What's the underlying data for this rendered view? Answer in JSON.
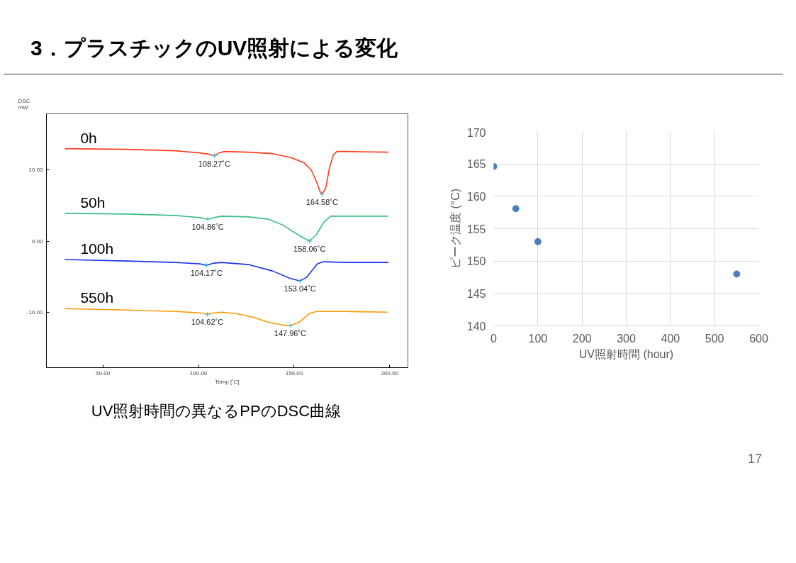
{
  "chart_data": [
    {
      "type": "line",
      "title": "3．プラスチックのUV照射による変化",
      "xlabel": "Temp [˚C]",
      "ylabel": "DSC\nmW",
      "xlim": [
        20.5,
        209.5
      ],
      "ylim": [
        -17.8,
        17.9
      ],
      "xticks": [
        {
          "value": 50,
          "label": "50.00"
        },
        {
          "value": 100,
          "label": "100.00"
        },
        {
          "value": 150,
          "label": "150.00"
        },
        {
          "value": 200,
          "label": "200.00"
        }
      ],
      "yticks": [
        {
          "value": -10,
          "label": "-10.00"
        },
        {
          "value": 0,
          "label": "0.00"
        },
        {
          "value": 10,
          "label": "10.00"
        }
      ],
      "grid": false,
      "legend": false,
      "marker": "none",
      "line_style": "solid",
      "series": [
        {
          "name": "0h",
          "color": "#ff3c1e",
          "x": [
            30.1,
            62.5,
            87.9,
            100.6,
            105.7,
            108.27,
            110.7,
            113.3,
            126,
            138.7,
            148.9,
            155.2,
            159.0,
            161.6,
            163.5,
            164.58,
            166.5,
            168.4,
            170.5,
            172.4,
            176.8,
            199.3
          ],
          "values": [
            13.0,
            12.9,
            12.7,
            12.4,
            12.2,
            12.0,
            12.4,
            12.6,
            12.5,
            12.3,
            11.7,
            11.0,
            10.0,
            8.4,
            7.0,
            6.6,
            7.4,
            10.2,
            12.1,
            12.6,
            12.6,
            12.5
          ]
        },
        {
          "name": "50h",
          "color": "#3cbe82",
          "x": [
            30.1,
            62.5,
            87.9,
            100.6,
            104.86,
            108.2,
            112.0,
            126,
            136.2,
            143.8,
            151.4,
            155.2,
            158.06,
            161.6,
            165.4,
            169.2,
            176.8,
            199.3
          ],
          "values": [
            3.9,
            3.8,
            3.6,
            3.3,
            3.1,
            3.3,
            3.5,
            3.4,
            3.1,
            2.3,
            1.0,
            0.4,
            0.0,
            0.9,
            2.6,
            3.5,
            3.5,
            3.5
          ]
        },
        {
          "name": "100h",
          "color": "#1e32f0",
          "x": [
            30.1,
            62.5,
            87.9,
            100.6,
            104.17,
            108.2,
            112.0,
            126,
            138.7,
            147.6,
            153.04,
            156.5,
            162.2,
            165.4,
            176.8,
            199.3
          ],
          "values": [
            -2.6,
            -2.8,
            -3.0,
            -3.2,
            -3.4,
            -3.1,
            -3.0,
            -3.3,
            -4.2,
            -5.2,
            -5.6,
            -5.1,
            -3.2,
            -2.9,
            -3.0,
            -3.0
          ]
        },
        {
          "name": "550h",
          "color": "#ff9900",
          "x": [
            30.1,
            62.5,
            87.9,
            100.6,
            104.62,
            108.2,
            112.0,
            119.6,
            128.5,
            136.2,
            143.8,
            147.96,
            152.7,
            157.8,
            161.6,
            176.8,
            198.8
          ],
          "values": [
            -9.5,
            -9.7,
            -9.9,
            -10.1,
            -10.3,
            -10.1,
            -10.0,
            -10.2,
            -10.7,
            -11.4,
            -11.8,
            -11.9,
            -11.4,
            -10.2,
            -9.9,
            -9.9,
            -10.0
          ]
        }
      ],
      "annotations": [
        {
          "text": "108.27˚C",
          "x": 108.27,
          "y": 12.0
        },
        {
          "text": "164.58˚C",
          "x": 164.58,
          "y": 6.6
        },
        {
          "text": "104.86˚C",
          "x": 104.86,
          "y": 3.1
        },
        {
          "text": "158.06˚C",
          "x": 158.06,
          "y": 0.0
        },
        {
          "text": "104.17˚C",
          "x": 104.17,
          "y": -3.4
        },
        {
          "text": "153.04˚C",
          "x": 153.04,
          "y": -5.6
        },
        {
          "text": "104.62˚C",
          "x": 104.62,
          "y": -10.3
        },
        {
          "text": "147.96˚C",
          "x": 147.96,
          "y": -11.9
        },
        "UV照射時間の異なるPPのDSC曲線"
      ]
    },
    {
      "type": "scatter",
      "xlabel": "UV照射時間 (hour)",
      "ylabel": "ピーク温度 (°C)",
      "x": [
        0,
        50,
        100,
        550
      ],
      "values": [
        164.6,
        158.1,
        153.0,
        148.0
      ],
      "color": "#4a7ebb",
      "marker": "circle",
      "xlim": [
        0,
        600
      ],
      "ylim": [
        140,
        170
      ],
      "xticks": [
        0,
        100,
        200,
        300,
        400,
        500,
        600
      ],
      "yticks": [
        140,
        145,
        150,
        155,
        160,
        165,
        170
      ],
      "grid": true,
      "annotations": [
        "17"
      ]
    }
  ]
}
